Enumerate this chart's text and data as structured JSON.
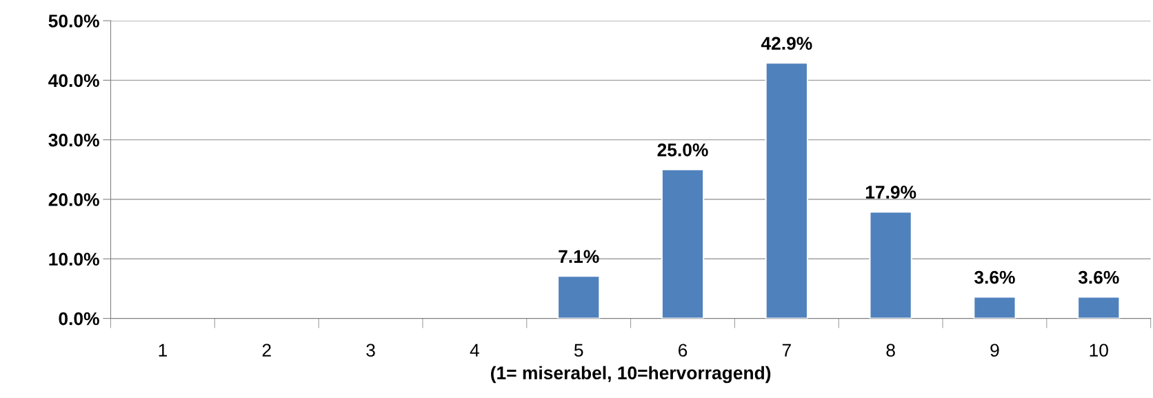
{
  "chart_data": {
    "type": "bar",
    "xlabel": "(1= miserabel, 10=hervorragend)",
    "categories": [
      "1",
      "2",
      "3",
      "4",
      "5",
      "6",
      "7",
      "8",
      "9",
      "10"
    ],
    "values": [
      0,
      0,
      0,
      0,
      7.1,
      25.0,
      42.9,
      17.9,
      3.6,
      3.6
    ],
    "value_labels": [
      null,
      null,
      null,
      null,
      "7.1%",
      "25.0%",
      "42.9%",
      "17.9%",
      "3.6%",
      "3.6%"
    ],
    "color": "#4f81bd",
    "ylim": [
      0,
      50
    ],
    "yticks": [
      {
        "value": 0,
        "label": "0.0%"
      },
      {
        "value": 10,
        "label": "10.0%"
      },
      {
        "value": 20,
        "label": "20.0%"
      },
      {
        "value": 30,
        "label": "30.0%"
      },
      {
        "value": 40,
        "label": "40.0%"
      },
      {
        "value": 50,
        "label": "50.0%"
      }
    ],
    "grid": "y"
  }
}
